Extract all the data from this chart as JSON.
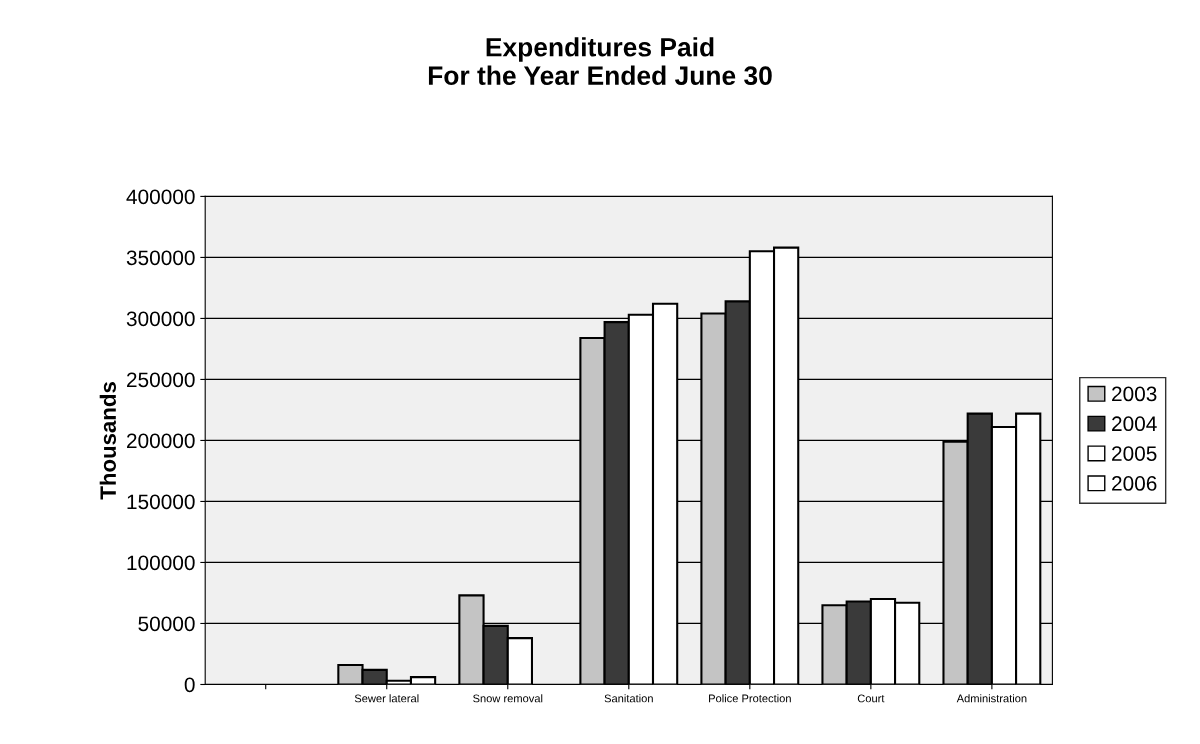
{
  "chart_data": {
    "type": "bar",
    "title": "Expenditures Paid\nFor the Year Ended June 30",
    "ylabel": "Thousands",
    "categories": [
      null,
      "Sewer lateral",
      "Snow removal",
      "Sanitation",
      "Police Protection",
      "Court",
      "Administration"
    ],
    "series": [
      {
        "name": "2003",
        "color": "#c4c4c4",
        "values": [
          null,
          16000,
          73000,
          284000,
          304000,
          65000,
          199000
        ]
      },
      {
        "name": "2004",
        "color": "#3a3a3a",
        "values": [
          null,
          12000,
          48000,
          297000,
          314000,
          68000,
          222000
        ]
      },
      {
        "name": "2005",
        "color": "#ffffff",
        "values": [
          null,
          3000,
          38000,
          303000,
          355000,
          70000,
          211000
        ]
      },
      {
        "name": "2006",
        "color": "#ffffff",
        "values": [
          null,
          6000,
          null,
          312000,
          358000,
          67000,
          222000
        ]
      }
    ],
    "ylim": [
      0,
      400000
    ],
    "yticks": [
      0,
      50000,
      100000,
      150000,
      200000,
      250000,
      300000,
      350000,
      400000
    ],
    "grid": "y",
    "legend": "right"
  }
}
